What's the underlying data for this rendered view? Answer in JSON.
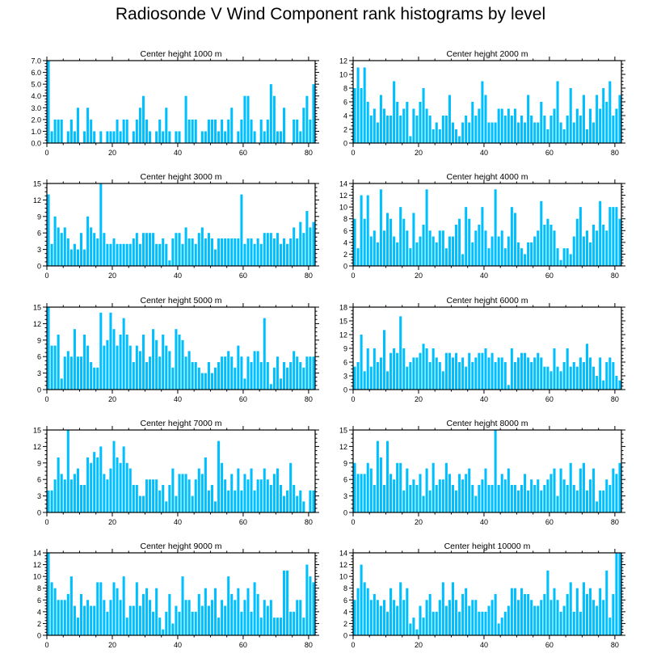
{
  "title": "Radiosonde V Wind Component rank histograms by level",
  "bar_color": "#00bfff",
  "chart_data": [
    {
      "type": "bar",
      "title": "Center height 1000 m",
      "xlim": [
        0,
        82
      ],
      "ylim": [
        0,
        7
      ],
      "yticks": [
        0,
        1,
        2,
        3,
        4,
        5,
        6,
        7
      ],
      "ytick_labels": [
        "0.0",
        "1.0",
        "2.0",
        "3.0",
        "4.0",
        "5.0",
        "6.0",
        "7.0"
      ],
      "xticks": [
        0,
        20,
        40,
        60,
        80
      ],
      "values": [
        7,
        1,
        2,
        2,
        2,
        0,
        1,
        2,
        1,
        3,
        0,
        1,
        3,
        2,
        1,
        0,
        1,
        0,
        1,
        1,
        1,
        2,
        1,
        2,
        2,
        0,
        1,
        2,
        3,
        4,
        2,
        1,
        0,
        1,
        2,
        1,
        3,
        1,
        0,
        1,
        1,
        0,
        4,
        2,
        2,
        2,
        0,
        1,
        1,
        2,
        2,
        2,
        1,
        2,
        1,
        2,
        3,
        0,
        1,
        2,
        4,
        4,
        2,
        1,
        0,
        2,
        1,
        2,
        5,
        4,
        1,
        1,
        3,
        0,
        0,
        2,
        2,
        1,
        3,
        4,
        2,
        5
      ]
    },
    {
      "type": "bar",
      "title": "Center height 2000 m",
      "xlim": [
        0,
        82
      ],
      "ylim": [
        0,
        12
      ],
      "yticks": [
        0,
        2,
        4,
        6,
        8,
        10,
        12
      ],
      "ytick_labels": [
        "0",
        "2",
        "4",
        "6",
        "8",
        "10",
        "12"
      ],
      "xticks": [
        0,
        20,
        40,
        60,
        80
      ],
      "values": [
        8,
        11,
        8,
        11,
        6,
        4,
        5,
        3,
        7,
        5,
        4,
        4,
        9,
        6,
        4,
        5,
        6,
        1,
        5,
        4,
        6,
        8,
        5,
        4,
        2,
        3,
        2,
        4,
        4,
        7,
        3,
        2,
        1,
        3,
        4,
        3,
        6,
        4,
        5,
        9,
        7,
        3,
        3,
        3,
        5,
        5,
        4,
        5,
        4,
        5,
        3,
        4,
        3,
        7,
        4,
        3,
        3,
        6,
        4,
        2,
        4,
        5,
        9,
        3,
        2,
        4,
        8,
        3,
        5,
        4,
        7,
        2,
        5,
        3,
        7,
        5,
        8,
        6,
        9,
        4,
        5,
        7
      ]
    },
    {
      "type": "bar",
      "title": "Center height 3000 m",
      "xlim": [
        0,
        82
      ],
      "ylim": [
        0,
        15
      ],
      "yticks": [
        0,
        3,
        6,
        9,
        12,
        15
      ],
      "ytick_labels": [
        "0",
        "3",
        "6",
        "9",
        "12",
        "15"
      ],
      "xticks": [
        0,
        20,
        40,
        60,
        80
      ],
      "values": [
        13,
        4,
        9,
        7,
        6,
        7,
        5,
        3,
        4,
        3,
        6,
        3,
        9,
        7,
        6,
        5,
        15,
        6,
        4,
        4,
        5,
        4,
        4,
        4,
        4,
        4,
        5,
        6,
        4,
        6,
        6,
        6,
        6,
        4,
        4,
        5,
        4,
        1,
        5,
        6,
        6,
        4,
        7,
        5,
        5,
        4,
        6,
        7,
        5,
        6,
        5,
        3,
        5,
        5,
        5,
        5,
        5,
        5,
        5,
        13,
        4,
        5,
        5,
        4,
        5,
        4,
        6,
        6,
        6,
        5,
        6,
        4,
        5,
        4,
        5,
        7,
        5,
        8,
        6,
        10,
        7,
        8
      ]
    },
    {
      "type": "bar",
      "title": "Center height 4000 m",
      "xlim": [
        0,
        82
      ],
      "ylim": [
        0,
        14
      ],
      "yticks": [
        0,
        2,
        4,
        6,
        8,
        10,
        12,
        14
      ],
      "ytick_labels": [
        "0",
        "2",
        "4",
        "6",
        "8",
        "10",
        "12",
        "14"
      ],
      "xticks": [
        0,
        20,
        40,
        60,
        80
      ],
      "values": [
        8,
        3,
        12,
        8,
        12,
        5,
        6,
        4,
        13,
        6,
        9,
        8,
        5,
        4,
        10,
        8,
        6,
        3,
        9,
        4,
        5,
        7,
        13,
        6,
        5,
        4,
        6,
        6,
        3,
        5,
        5,
        7,
        8,
        2,
        10,
        8,
        4,
        6,
        7,
        10,
        6,
        3,
        5,
        13,
        5,
        6,
        3,
        5,
        10,
        9,
        4,
        3,
        2,
        4,
        4,
        5,
        6,
        11,
        7,
        8,
        7,
        6,
        3,
        1,
        3,
        3,
        2,
        5,
        8,
        10,
        5,
        6,
        4,
        7,
        6,
        11,
        7,
        6,
        10,
        10,
        10,
        8
      ]
    },
    {
      "type": "bar",
      "title": "Center height 5000 m",
      "xlim": [
        0,
        82
      ],
      "ylim": [
        0,
        15
      ],
      "yticks": [
        0,
        3,
        6,
        9,
        12,
        15
      ],
      "ytick_labels": [
        "0",
        "3",
        "6",
        "9",
        "12",
        "15"
      ],
      "xticks": [
        0,
        20,
        40,
        60,
        80
      ],
      "values": [
        15,
        8,
        8,
        10,
        2,
        6,
        7,
        6,
        11,
        6,
        6,
        10,
        8,
        5,
        4,
        4,
        14,
        8,
        9,
        14,
        11,
        8,
        10,
        13,
        10,
        8,
        5,
        8,
        7,
        10,
        5,
        6,
        11,
        9,
        6,
        10,
        8,
        7,
        4,
        11,
        10,
        9,
        6,
        7,
        5,
        5,
        4,
        3,
        3,
        5,
        3,
        4,
        5,
        6,
        6,
        7,
        6,
        4,
        8,
        6,
        2,
        6,
        5,
        7,
        7,
        5,
        13,
        5,
        1,
        4,
        6,
        2,
        5,
        4,
        5,
        7,
        6,
        5,
        4,
        6,
        6,
        6
      ]
    },
    {
      "type": "bar",
      "title": "Center height 6000 m",
      "xlim": [
        0,
        82
      ],
      "ylim": [
        0,
        18
      ],
      "yticks": [
        0,
        3,
        6,
        9,
        12,
        15,
        18
      ],
      "ytick_labels": [
        "0",
        "3",
        "6",
        "9",
        "12",
        "15",
        "18"
      ],
      "xticks": [
        0,
        20,
        40,
        60,
        80
      ],
      "values": [
        5,
        6,
        12,
        4,
        9,
        5,
        9,
        6,
        7,
        13,
        4,
        8,
        9,
        8,
        16,
        9,
        5,
        6,
        7,
        7,
        8,
        10,
        9,
        6,
        9,
        7,
        6,
        4,
        8,
        8,
        7,
        8,
        6,
        7,
        5,
        8,
        6,
        7,
        8,
        8,
        9,
        7,
        8,
        6,
        7,
        7,
        6,
        1,
        9,
        6,
        7,
        8,
        8,
        7,
        6,
        7,
        8,
        7,
        5,
        5,
        4,
        9,
        5,
        4,
        6,
        9,
        5,
        6,
        5,
        7,
        6,
        10,
        7,
        5,
        3,
        7,
        2,
        6,
        7,
        6,
        3,
        2
      ]
    },
    {
      "type": "bar",
      "title": "Center height 7000 m",
      "xlim": [
        0,
        82
      ],
      "ylim": [
        0,
        15
      ],
      "yticks": [
        0,
        3,
        6,
        9,
        12,
        15
      ],
      "ytick_labels": [
        "0",
        "3",
        "6",
        "9",
        "12",
        "15"
      ],
      "xticks": [
        0,
        20,
        40,
        60,
        80
      ],
      "values": [
        4,
        4,
        6,
        10,
        7,
        6,
        15,
        6,
        7,
        8,
        5,
        5,
        10,
        9,
        11,
        10,
        12,
        7,
        6,
        8,
        13,
        10,
        9,
        12,
        9,
        8,
        5,
        5,
        3,
        3,
        6,
        6,
        6,
        6,
        4,
        5,
        2,
        5,
        8,
        3,
        7,
        7,
        7,
        6,
        3,
        6,
        8,
        7,
        10,
        4,
        5,
        2,
        13,
        9,
        6,
        4,
        7,
        4,
        8,
        4,
        7,
        6,
        8,
        4,
        6,
        6,
        8,
        6,
        5,
        7,
        8,
        5,
        3,
        4,
        9,
        5,
        3,
        4,
        2,
        0,
        4,
        4
      ]
    },
    {
      "type": "bar",
      "title": "Center height 8000 m",
      "xlim": [
        0,
        82
      ],
      "ylim": [
        0,
        15
      ],
      "yticks": [
        0,
        3,
        6,
        9,
        12,
        15
      ],
      "ytick_labels": [
        "0",
        "3",
        "6",
        "9",
        "12",
        "15"
      ],
      "xticks": [
        0,
        20,
        40,
        60,
        80
      ],
      "values": [
        9,
        7,
        7,
        7,
        9,
        8,
        5,
        13,
        10,
        5,
        13,
        7,
        6,
        9,
        9,
        4,
        8,
        5,
        6,
        5,
        7,
        3,
        8,
        4,
        9,
        5,
        6,
        6,
        9,
        7,
        5,
        4,
        7,
        6,
        7,
        8,
        5,
        3,
        5,
        6,
        8,
        5,
        5,
        15,
        5,
        7,
        6,
        8,
        5,
        5,
        4,
        5,
        7,
        4,
        6,
        5,
        6,
        4,
        5,
        6,
        7,
        8,
        3,
        8,
        6,
        5,
        9,
        5,
        4,
        8,
        9,
        4,
        6,
        8,
        2,
        4,
        4,
        6,
        5,
        8,
        7,
        9
      ]
    },
    {
      "type": "bar",
      "title": "Center height 9000 m",
      "xlim": [
        0,
        82
      ],
      "ylim": [
        0,
        14
      ],
      "yticks": [
        0,
        2,
        4,
        6,
        8,
        10,
        12,
        14
      ],
      "ytick_labels": [
        "0",
        "2",
        "4",
        "6",
        "8",
        "10",
        "12",
        "14"
      ],
      "xticks": [
        0,
        20,
        40,
        60,
        80
      ],
      "values": [
        14,
        9,
        8,
        6,
        6,
        6,
        7,
        10,
        5,
        3,
        7,
        5,
        6,
        5,
        5,
        9,
        9,
        6,
        4,
        6,
        9,
        8,
        6,
        10,
        3,
        5,
        5,
        9,
        5,
        7,
        8,
        6,
        4,
        8,
        3,
        1,
        4,
        7,
        2,
        5,
        4,
        10,
        6,
        6,
        4,
        4,
        7,
        5,
        8,
        5,
        6,
        8,
        3,
        6,
        5,
        10,
        7,
        6,
        8,
        4,
        6,
        8,
        4,
        9,
        7,
        3,
        6,
        5,
        6,
        3,
        3,
        3,
        11,
        11,
        4,
        4,
        6,
        6,
        3,
        12,
        10,
        9
      ]
    },
    {
      "type": "bar",
      "title": "Center height 10000 m",
      "xlim": [
        0,
        82
      ],
      "ylim": [
        0,
        14
      ],
      "yticks": [
        0,
        2,
        4,
        6,
        8,
        10,
        12,
        14
      ],
      "ytick_labels": [
        "0",
        "2",
        "4",
        "6",
        "8",
        "10",
        "12",
        "14"
      ],
      "xticks": [
        0,
        20,
        40,
        60,
        80
      ],
      "values": [
        6,
        8,
        12,
        9,
        8,
        6,
        7,
        6,
        5,
        6,
        4,
        8,
        6,
        5,
        9,
        6,
        8,
        2,
        3,
        1,
        5,
        3,
        6,
        7,
        4,
        4,
        6,
        9,
        5,
        6,
        9,
        6,
        4,
        7,
        8,
        5,
        6,
        6,
        4,
        4,
        4,
        5,
        6,
        7,
        2,
        3,
        4,
        5,
        8,
        8,
        6,
        8,
        7,
        7,
        6,
        5,
        5,
        6,
        7,
        11,
        6,
        8,
        6,
        4,
        5,
        7,
        9,
        4,
        8,
        4,
        9,
        7,
        8,
        6,
        5,
        8,
        6,
        11,
        3,
        7,
        14,
        14
      ]
    }
  ]
}
